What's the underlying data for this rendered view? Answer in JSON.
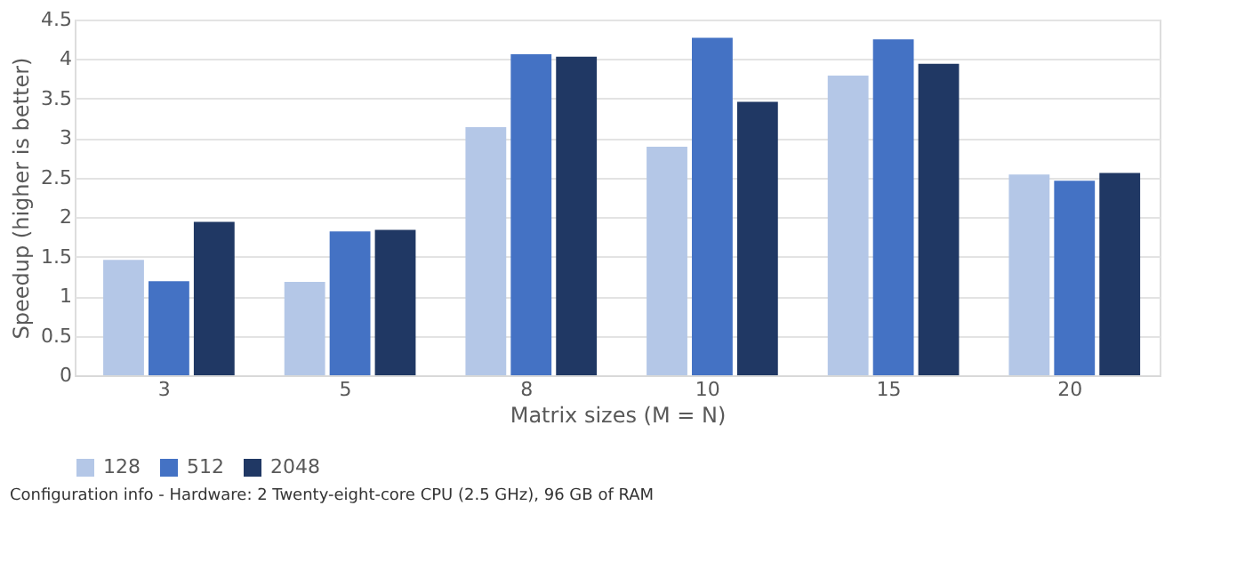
{
  "chart_data": {
    "type": "bar",
    "xlabel": "Matrix sizes (M = N)",
    "ylabel": "Speedup (higher is better)",
    "categories": [
      "3",
      "5",
      "8",
      "10",
      "15",
      "20"
    ],
    "series": [
      {
        "name": "128",
        "color": "#b4c7e7",
        "values": [
          1.46,
          1.18,
          3.14,
          2.89,
          3.79,
          2.54
        ]
      },
      {
        "name": "512",
        "color": "#4472c4",
        "values": [
          1.19,
          1.82,
          4.06,
          4.27,
          4.25,
          2.46
        ]
      },
      {
        "name": "2048",
        "color": "#203864",
        "values": [
          1.94,
          1.84,
          4.03,
          3.46,
          3.94,
          2.56
        ]
      }
    ],
    "ylim": [
      0,
      4.5
    ],
    "yticks": [
      0,
      0.5,
      1,
      1.5,
      2,
      2.5,
      3,
      3.5,
      4,
      4.5
    ],
    "grid": "y",
    "legend": "bottom",
    "annotations": [
      "Configuration info - Hardware: 2 Twenty-eight-core CPU (2.5 GHz), 96 GB of RAM"
    ]
  }
}
